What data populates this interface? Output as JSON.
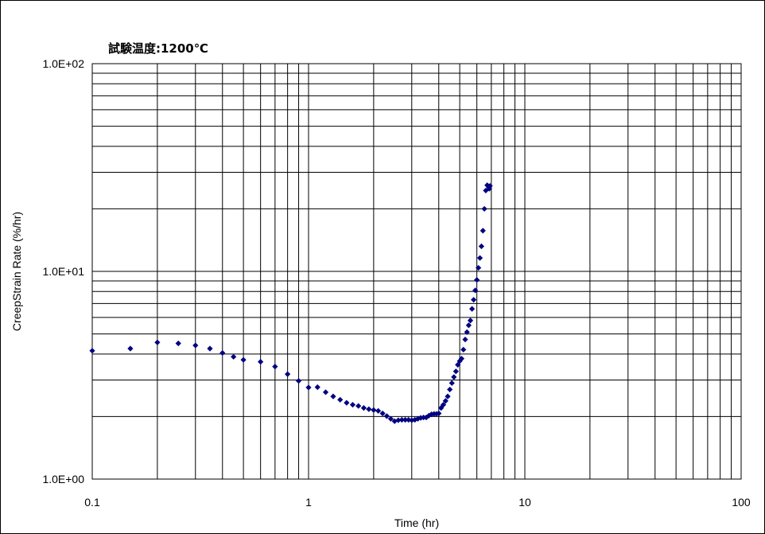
{
  "chart_data": {
    "type": "scatter",
    "title": "試験温度:1200℃",
    "xlabel": "Time (hr)",
    "ylabel": "CreepStrain Rate (%/hr)",
    "x_scale": "log",
    "y_scale": "log",
    "xlim": [
      0.1,
      100
    ],
    "ylim": [
      1,
      100
    ],
    "x_ticks": [
      "0.1",
      "1",
      "10",
      "100"
    ],
    "y_ticks": [
      "1.0E+00",
      "1.0E+01",
      "1.0E+02"
    ],
    "grid": true,
    "legend": "none",
    "marker": "diamond",
    "series": [
      {
        "color": "#000080",
        "x": [
          0.1,
          0.15,
          0.2,
          0.25,
          0.3,
          0.35,
          0.4,
          0.45,
          0.5,
          0.6,
          0.7,
          0.8,
          0.9,
          1.0,
          1.1,
          1.2,
          1.3,
          1.4,
          1.5,
          1.6,
          1.7,
          1.8,
          1.9,
          2.0,
          2.1,
          2.2,
          2.3,
          2.4,
          2.5,
          2.6,
          2.7,
          2.8,
          2.9,
          3.0,
          3.1,
          3.2,
          3.3,
          3.4,
          3.5,
          3.6,
          3.7,
          3.8,
          3.9,
          4.0,
          4.1,
          4.2,
          4.3,
          4.4,
          4.5,
          4.6,
          4.7,
          4.8,
          4.9,
          5.0,
          5.1,
          5.2,
          5.3,
          5.4,
          5.5,
          5.6,
          5.7,
          5.8,
          5.9,
          6.0,
          6.1,
          6.2,
          6.3,
          6.4,
          6.5,
          6.6,
          6.7,
          6.8,
          6.85,
          6.9
        ],
        "y": [
          4.15,
          4.25,
          4.55,
          4.5,
          4.4,
          4.25,
          4.05,
          3.88,
          3.75,
          3.67,
          3.48,
          3.2,
          2.97,
          2.76,
          2.77,
          2.62,
          2.5,
          2.41,
          2.33,
          2.28,
          2.25,
          2.2,
          2.17,
          2.15,
          2.13,
          2.07,
          2.01,
          1.95,
          1.9,
          1.92,
          1.93,
          1.93,
          1.93,
          1.92,
          1.93,
          1.95,
          1.97,
          1.98,
          1.98,
          2.02,
          2.05,
          2.06,
          2.06,
          2.07,
          2.2,
          2.28,
          2.38,
          2.5,
          2.7,
          2.9,
          3.1,
          3.3,
          3.55,
          3.7,
          3.8,
          4.2,
          4.7,
          5.1,
          5.5,
          5.8,
          6.6,
          7.3,
          8.1,
          9.1,
          10.4,
          11.6,
          13.2,
          15.7,
          20.0,
          24.5,
          26.0,
          25.5,
          25.0,
          25.8
        ]
      }
    ]
  }
}
